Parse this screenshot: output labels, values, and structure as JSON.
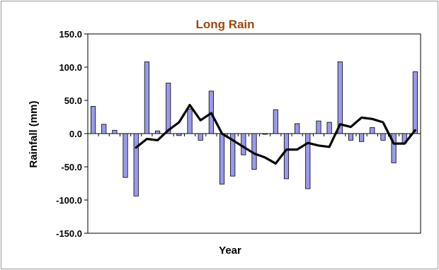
{
  "chart_data": {
    "type": "bar",
    "title": "Long Rain",
    "xlabel": "Year",
    "ylabel": "Rainfall  (mm)",
    "ylim": [
      -150,
      150
    ],
    "yticks": [
      "150.0",
      "100.0",
      "50.0",
      "0.0",
      "-50.0",
      "-100.0",
      "-150.0"
    ],
    "grid": false,
    "legend": "none",
    "series": [
      {
        "kind": "bar",
        "values": [
          41,
          14,
          5,
          -66,
          -94,
          108,
          4,
          76,
          -3,
          37,
          -10,
          64,
          -76,
          -64,
          -32,
          -54,
          -1,
          36,
          -68,
          15,
          -83,
          19,
          17,
          108,
          -10,
          -12,
          9,
          -10,
          -44,
          -14,
          93
        ],
        "color": "#9999ee"
      },
      {
        "kind": "line",
        "start_index": 4,
        "values": [
          -21,
          -8,
          -10,
          5,
          17,
          43,
          20,
          31,
          0,
          -10,
          -20,
          -30,
          -36,
          -45,
          -24,
          -24,
          -14,
          -18,
          -20,
          14,
          10,
          24,
          22,
          17,
          -15,
          -15,
          5
        ],
        "color": "#000000"
      }
    ]
  }
}
